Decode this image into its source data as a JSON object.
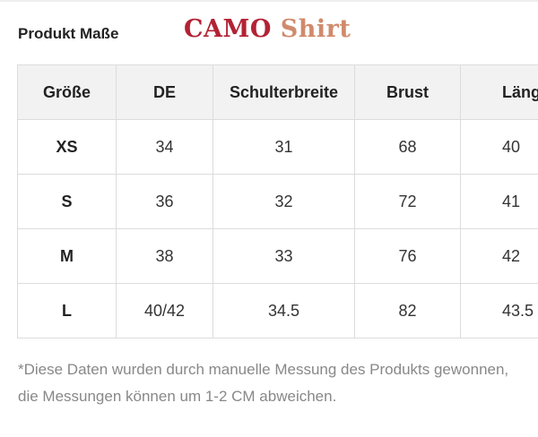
{
  "header": {
    "title": "Produkt Maße",
    "brand_part1": "CAMO",
    "brand_part2": "Shirt",
    "brand_color_primary": "#b32234",
    "brand_color_secondary": "#d08a6c"
  },
  "table": {
    "columns": [
      "Größe",
      "DE",
      "Schulterbreite",
      "Brust",
      "Länge"
    ],
    "rows": [
      [
        "XS",
        "34",
        "31",
        "68",
        "40"
      ],
      [
        "S",
        "36",
        "32",
        "72",
        "41"
      ],
      [
        "M",
        "38",
        "33",
        "76",
        "42"
      ],
      [
        "L",
        "40/42",
        "34.5",
        "82",
        "43.5"
      ]
    ],
    "header_background": "#f2f2f2",
    "border_color": "#dcdcdc"
  },
  "footnote": {
    "text": "*Diese Daten wurden durch manuelle Messung des Produkts gewonnen, die Messungen können um 1-2 CM abweichen."
  }
}
